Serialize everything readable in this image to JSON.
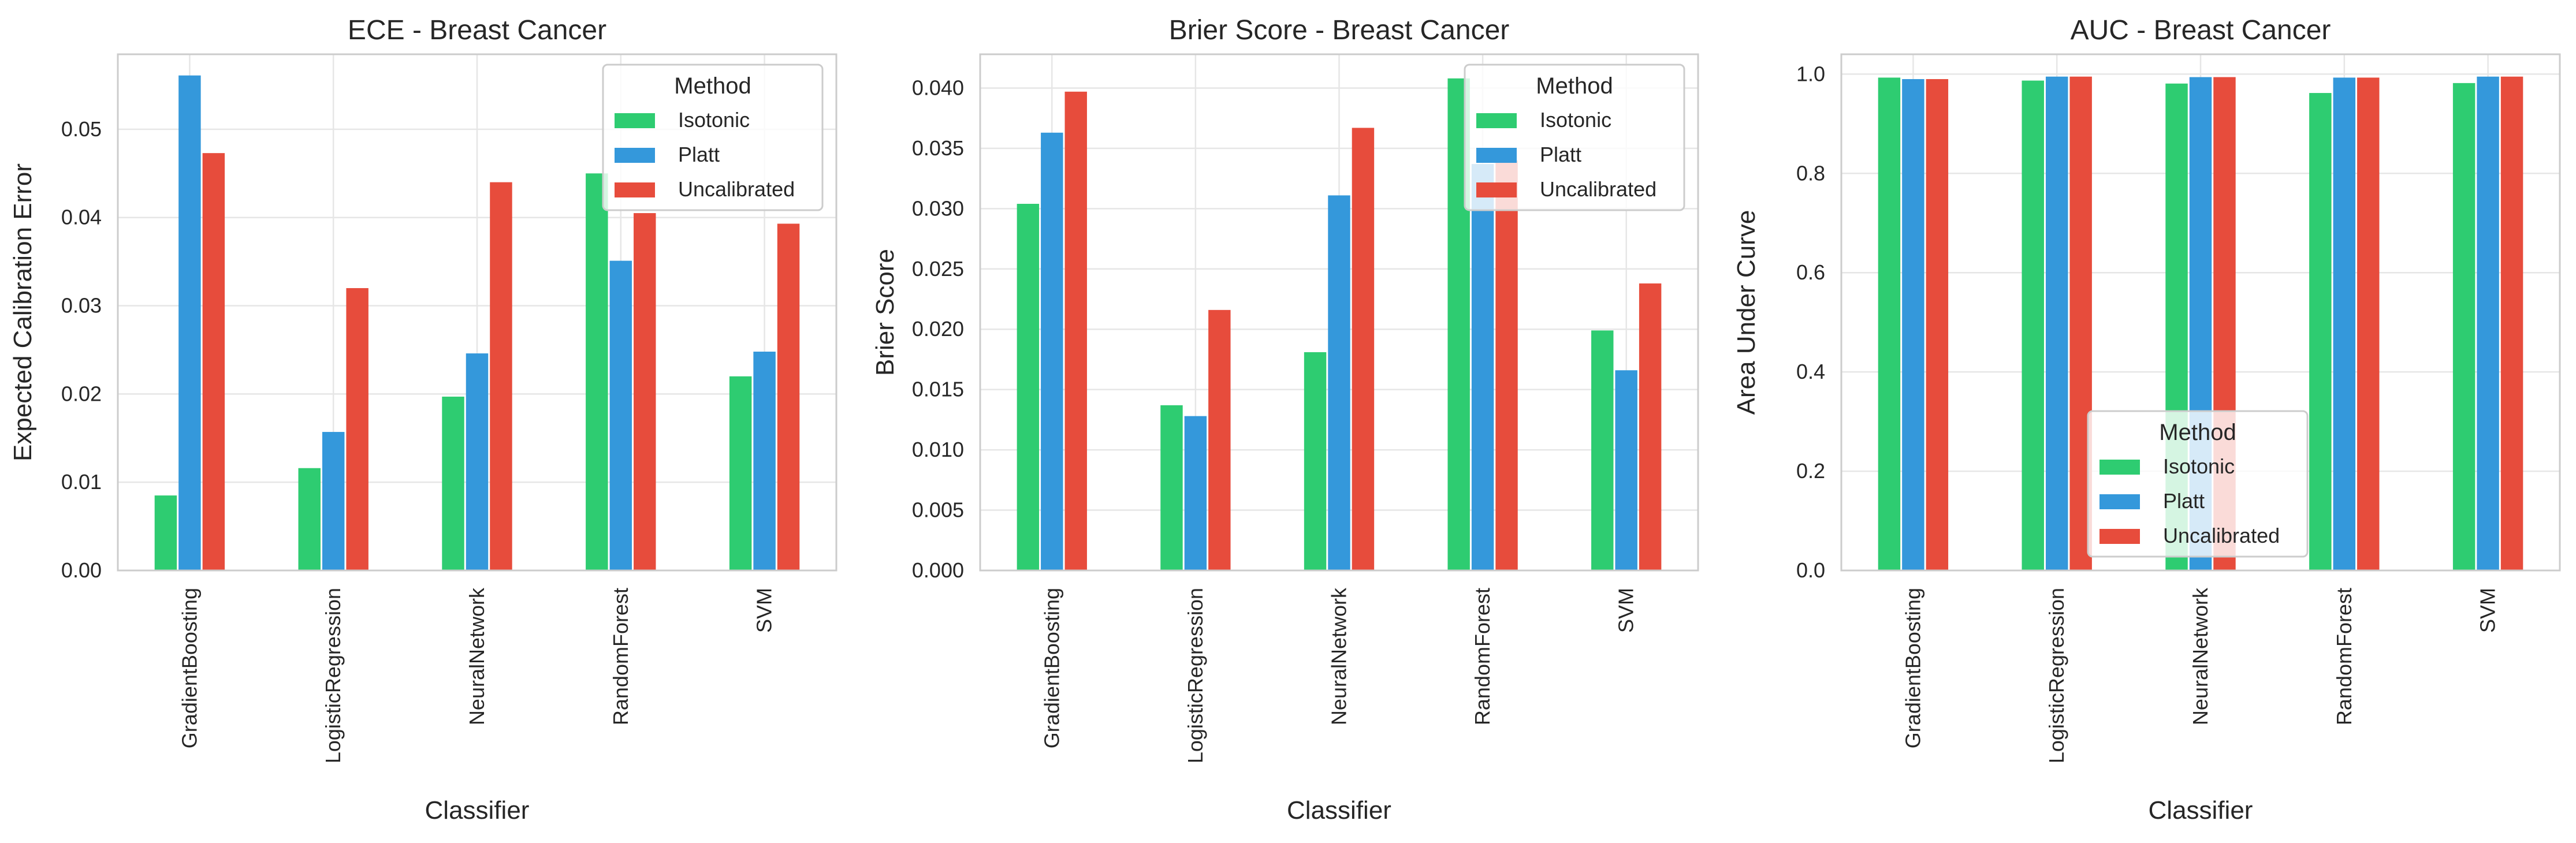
{
  "chart_data": [
    {
      "type": "bar",
      "title": "ECE - Breast Cancer",
      "xlabel": "Classifier",
      "ylabel": "Expected Calibration Error",
      "ylim": [
        0,
        0.0585
      ],
      "yticks": [
        0.0,
        0.01,
        0.02,
        0.03,
        0.04,
        0.05
      ],
      "ytick_labels": [
        "0.00",
        "0.01",
        "0.02",
        "0.03",
        "0.04",
        "0.05"
      ],
      "grid": true,
      "legend_title": "Method",
      "legend_position": "top-right",
      "categories": [
        "GradientBoosting",
        "LogisticRegression",
        "NeuralNetwork",
        "RandomForest",
        "SVM"
      ],
      "series": [
        {
          "name": "Isotonic",
          "color": "#2ecc71",
          "values": [
            0.0085,
            0.0116,
            0.0197,
            0.045,
            0.022
          ]
        },
        {
          "name": "Platt",
          "color": "#3498db",
          "values": [
            0.0561,
            0.0157,
            0.0246,
            0.0351,
            0.0248
          ]
        },
        {
          "name": "Uncalibrated",
          "color": "#e74c3c",
          "values": [
            0.0473,
            0.032,
            0.044,
            0.0405,
            0.0393
          ]
        }
      ]
    },
    {
      "type": "bar",
      "title": "Brier Score - Breast Cancer",
      "xlabel": "Classifier",
      "ylabel": "Brier Score",
      "ylim": [
        0,
        0.0428
      ],
      "yticks": [
        0.0,
        0.005,
        0.01,
        0.015,
        0.02,
        0.025,
        0.03,
        0.035,
        0.04
      ],
      "ytick_labels": [
        "0.000",
        "0.005",
        "0.010",
        "0.015",
        "0.020",
        "0.025",
        "0.030",
        "0.035",
        "0.040"
      ],
      "grid": true,
      "legend_title": "Method",
      "legend_position": "top-right",
      "categories": [
        "GradientBoosting",
        "LogisticRegression",
        "NeuralNetwork",
        "RandomForest",
        "SVM"
      ],
      "series": [
        {
          "name": "Isotonic",
          "color": "#2ecc71",
          "values": [
            0.0304,
            0.0137,
            0.0181,
            0.0408,
            0.0199
          ]
        },
        {
          "name": "Platt",
          "color": "#3498db",
          "values": [
            0.0363,
            0.0128,
            0.0311,
            0.0337,
            0.0166
          ]
        },
        {
          "name": "Uncalibrated",
          "color": "#e74c3c",
          "values": [
            0.0397,
            0.0216,
            0.0367,
            0.034,
            0.0238
          ]
        }
      ]
    },
    {
      "type": "bar",
      "title": "AUC - Breast Cancer",
      "xlabel": "Classifier",
      "ylabel": "Area Under Curve",
      "ylim": [
        0,
        1.04
      ],
      "yticks": [
        0.0,
        0.2,
        0.4,
        0.6,
        0.8,
        1.0
      ],
      "ytick_labels": [
        "0.0",
        "0.2",
        "0.4",
        "0.6",
        "0.8",
        "1.0"
      ],
      "grid": true,
      "legend_title": "Method",
      "legend_position": "lower-center",
      "categories": [
        "GradientBoosting",
        "LogisticRegression",
        "NeuralNetwork",
        "RandomForest",
        "SVM"
      ],
      "series": [
        {
          "name": "Isotonic",
          "color": "#2ecc71",
          "values": [
            0.993,
            0.987,
            0.981,
            0.962,
            0.982
          ]
        },
        {
          "name": "Platt",
          "color": "#3498db",
          "values": [
            0.99,
            0.995,
            0.994,
            0.993,
            0.995
          ]
        },
        {
          "name": "Uncalibrated",
          "color": "#e74c3c",
          "values": [
            0.99,
            0.995,
            0.994,
            0.993,
            0.995
          ]
        }
      ]
    }
  ]
}
